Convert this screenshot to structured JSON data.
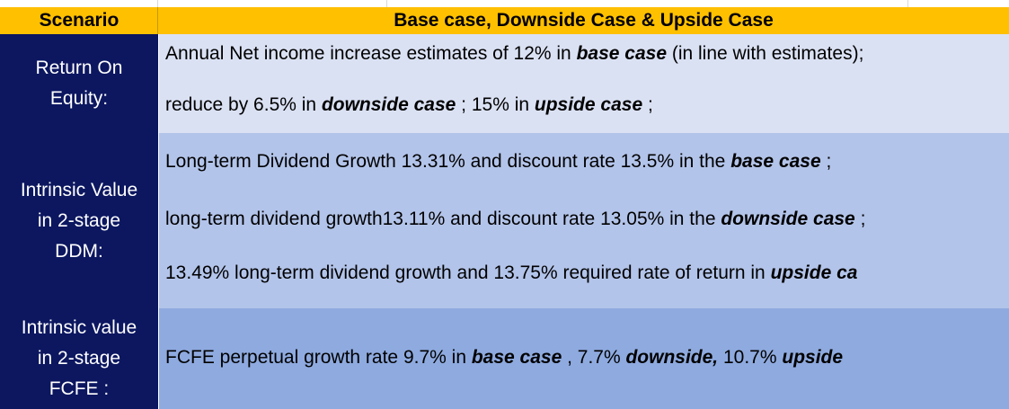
{
  "header": {
    "scenario_label": "Scenario",
    "cases_label": "Base case, Downside Case & Upside Case"
  },
  "rows": [
    {
      "label_lines": [
        "Return On",
        "Equity:"
      ],
      "lines": [
        [
          {
            "t": "Annual Net income increase estimates of 12% in ",
            "b": false
          },
          {
            "t": "base case",
            "b": true
          },
          {
            "t": "  (in line with estimates);",
            "b": false
          }
        ],
        [
          {
            "t": "reduce by 6.5% in ",
            "b": false
          },
          {
            "t": "downside case",
            "b": true
          },
          {
            "t": " ; 15% in ",
            "b": false
          },
          {
            "t": "upside case",
            "b": true
          },
          {
            "t": " ;",
            "b": false
          }
        ]
      ]
    },
    {
      "label_lines": [
        "Intrinsic Value",
        "in 2-stage",
        "DDM:"
      ],
      "lines": [
        [
          {
            "t": "Long-term Dividend Growth 13.31% and discount rate 13.5% in the ",
            "b": false
          },
          {
            "t": "base case",
            "b": true
          },
          {
            "t": " ;",
            "b": false
          }
        ],
        [
          {
            "t": "long-term dividend growth13.11% and discount rate 13.05% in the ",
            "b": false
          },
          {
            "t": "downside case",
            "b": true
          },
          {
            "t": " ;",
            "b": false
          }
        ],
        [
          {
            "t": "13.49% long-term dividend growth and 13.75% required rate of return in ",
            "b": false
          },
          {
            "t": "upside ca",
            "b": true
          }
        ]
      ]
    },
    {
      "label_lines": [
        "Intrinsic value",
        "in 2-stage",
        "FCFE :"
      ],
      "lines": [
        [
          {
            "t": "FCFE perpetual growth rate 9.7% in ",
            "b": false
          },
          {
            "t": "base case",
            "b": true
          },
          {
            "t": " , 7.7% ",
            "b": false
          },
          {
            "t": "downside,",
            "b": true
          },
          {
            "t": "  10.7% ",
            "b": false
          },
          {
            "t": "upside",
            "b": true
          }
        ]
      ]
    }
  ]
}
